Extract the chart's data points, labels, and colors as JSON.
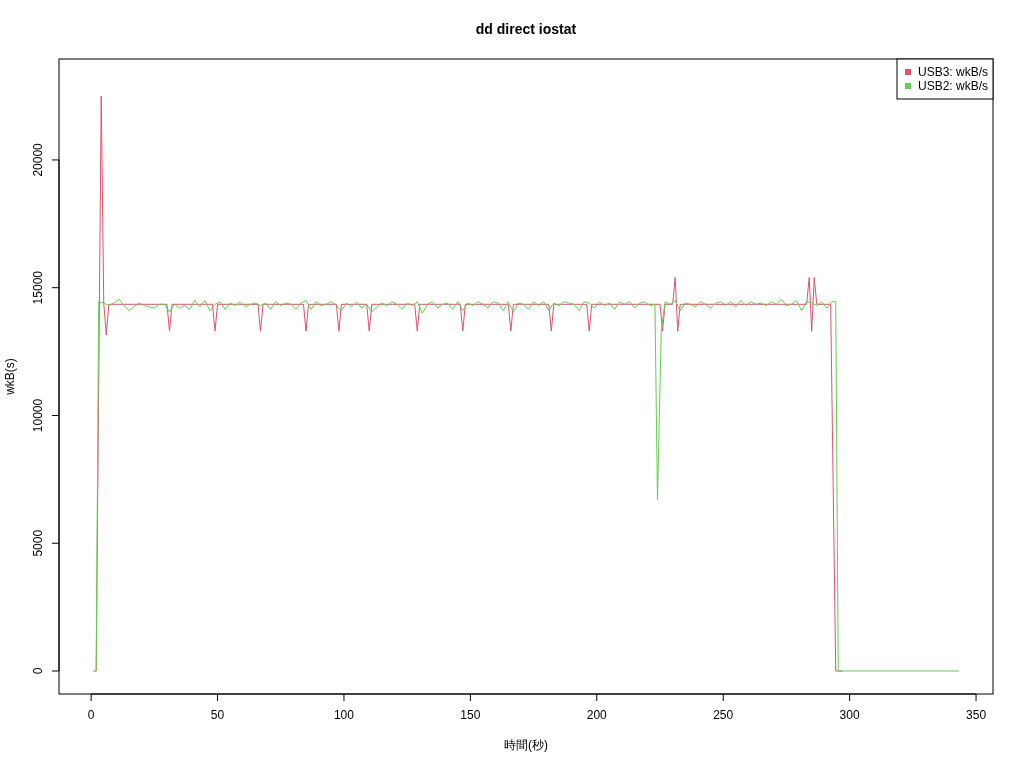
{
  "chart_data": {
    "type": "line",
    "title": "dd direct iostat",
    "xlabel": "時間(秒)",
    "ylabel": "wkB(s)",
    "xlim": [
      -12.7,
      356.7
    ],
    "ylim": [
      -900,
      23950
    ],
    "xticks": [
      0,
      50,
      100,
      150,
      200,
      250,
      300,
      350
    ],
    "yticks": [
      0,
      5000,
      10000,
      15000,
      20000
    ],
    "legend": "top right",
    "grid": false,
    "marker": "none",
    "line_style": "solid",
    "series": [
      {
        "name": "USB3: wkB/s",
        "color": "#df536b",
        "x": [
          1,
          2,
          4,
          5,
          6,
          7,
          30,
          31,
          32,
          48,
          49,
          50,
          66,
          67,
          68,
          84,
          85,
          86,
          97,
          98,
          99,
          109,
          110,
          111,
          128,
          129,
          130,
          146,
          147,
          148,
          165,
          166,
          167,
          181,
          182,
          183,
          196,
          197,
          198,
          225,
          226,
          227,
          230,
          231,
          232,
          233,
          283,
          284,
          285,
          286,
          287,
          292.5,
          294.5,
          297
        ],
        "values": [
          0,
          0,
          22500,
          14400,
          13150,
          14350,
          14350,
          13300,
          14350,
          14350,
          13300,
          14350,
          14350,
          13300,
          14350,
          14350,
          13300,
          14350,
          14350,
          13300,
          14350,
          14350,
          13300,
          14350,
          14350,
          13300,
          14350,
          14350,
          13300,
          14350,
          14350,
          13300,
          14350,
          14350,
          13300,
          14350,
          14350,
          13300,
          14350,
          14350,
          13300,
          14350,
          14350,
          15400,
          13300,
          14350,
          14350,
          15400,
          13300,
          15400,
          14350,
          14350,
          0,
          0
        ]
      },
      {
        "name": "USB2: wkB/s",
        "color": "#61d04f",
        "x": [
          2,
          3,
          5,
          7,
          9,
          11,
          13,
          15,
          17,
          19,
          21,
          23,
          25,
          27,
          29,
          31,
          33,
          35,
          37,
          39,
          41,
          43,
          45,
          47,
          49,
          51,
          53,
          55,
          57,
          59,
          61,
          63,
          65,
          67,
          69,
          71,
          73,
          75,
          77,
          79,
          81,
          83,
          85,
          87,
          89,
          91,
          93,
          95,
          97,
          99,
          101,
          103,
          105,
          107,
          109,
          111,
          113,
          115,
          117,
          119,
          121,
          123,
          125,
          127,
          129,
          131,
          133,
          135,
          137,
          139,
          141,
          143,
          145,
          147,
          149,
          151,
          153,
          155,
          157,
          159,
          161,
          163,
          165,
          167,
          169,
          171,
          173,
          175,
          177,
          179,
          181,
          183,
          185,
          187,
          189,
          191,
          193,
          195,
          197,
          199,
          201,
          203,
          205,
          207,
          209,
          211,
          213,
          215,
          217,
          219,
          221,
          223,
          224,
          225.5,
          227,
          229,
          231,
          233,
          235,
          237,
          239,
          241,
          243,
          245,
          247,
          249,
          251,
          253,
          255,
          257,
          259,
          261,
          263,
          265,
          267,
          269,
          271,
          273,
          275,
          277,
          279,
          281,
          283,
          285,
          287,
          289,
          291,
          293,
          294.5,
          295.5,
          343
        ],
        "values": [
          0,
          14450,
          14400,
          14300,
          14400,
          14550,
          14300,
          14100,
          14250,
          14400,
          14300,
          14250,
          14200,
          14350,
          14350,
          14050,
          14350,
          14200,
          14300,
          14150,
          14500,
          14250,
          14500,
          14100,
          14350,
          14450,
          14150,
          14400,
          14300,
          14450,
          14250,
          14350,
          14400,
          14300,
          14400,
          14150,
          14450,
          14300,
          14400,
          14350,
          14150,
          14400,
          14500,
          14150,
          14450,
          14300,
          14350,
          14450,
          14300,
          14100,
          14400,
          14250,
          14450,
          14200,
          14350,
          14050,
          14250,
          14400,
          14300,
          14450,
          14350,
          14150,
          14400,
          14300,
          14450,
          14000,
          14350,
          14450,
          14200,
          14350,
          14400,
          14150,
          14450,
          14100,
          14400,
          14300,
          14450,
          14350,
          14200,
          14450,
          14400,
          14100,
          14450,
          14050,
          14400,
          14350,
          14150,
          14450,
          14300,
          14450,
          14100,
          14400,
          14300,
          14450,
          14400,
          14350,
          14100,
          14450,
          14400,
          14200,
          14450,
          14300,
          14400,
          14150,
          14450,
          14350,
          14450,
          14200,
          14400,
          14450,
          14300,
          14350,
          6700,
          13300,
          14450,
          14350,
          14500,
          14100,
          14400,
          14350,
          14250,
          14450,
          14350,
          14200,
          14400,
          14450,
          14300,
          14450,
          14250,
          14500,
          14300,
          14450,
          14350,
          14400,
          14300,
          14450,
          14350,
          14550,
          14300,
          14350,
          14500,
          14100,
          14450,
          14400,
          14300,
          14450,
          14200,
          14450,
          14450,
          0,
          0
        ]
      }
    ]
  }
}
